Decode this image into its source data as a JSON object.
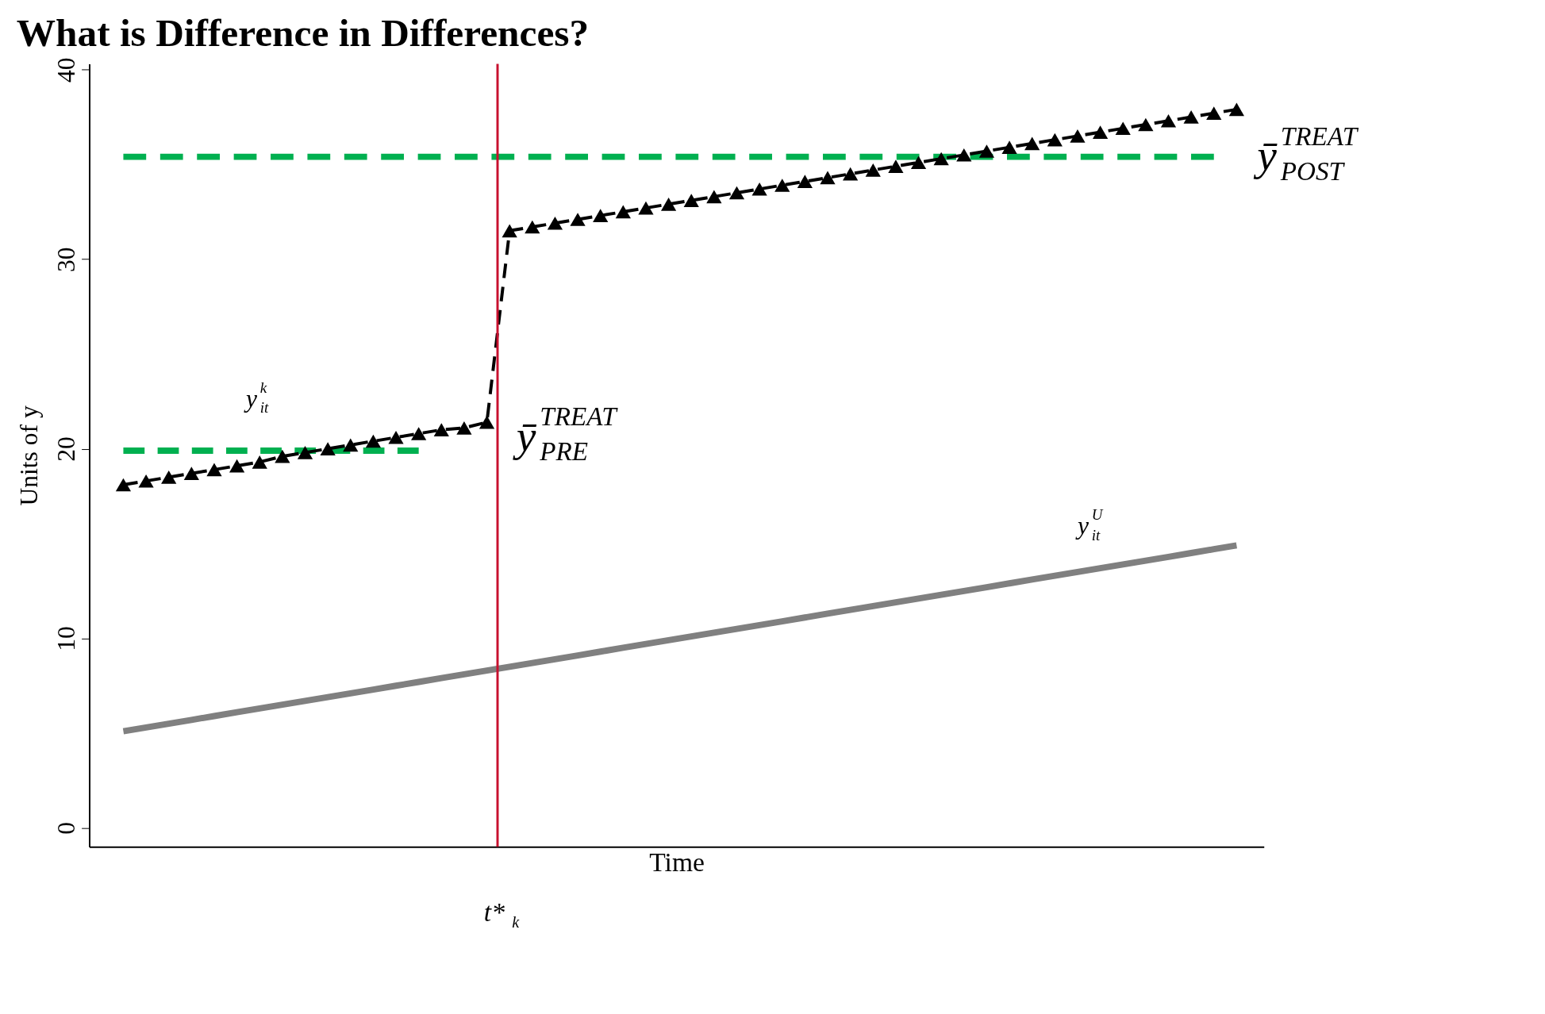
{
  "chart_data": {
    "type": "line",
    "title": "What is Difference in Differences?",
    "xlabel": "Time",
    "ylabel": "Units of y",
    "categories": [
      null,
      null,
      null,
      null,
      null,
      null,
      null,
      null,
      null,
      null,
      null,
      null,
      null,
      null,
      null,
      null,
      null,
      null,
      null,
      null,
      null,
      null,
      null,
      null,
      null,
      null,
      null,
      null,
      null,
      null,
      null,
      null,
      null,
      null,
      null,
      null,
      null,
      null,
      null,
      null,
      null,
      null,
      null,
      null,
      null,
      null,
      null,
      null,
      null,
      null
    ],
    "ylim": [
      -1,
      40.3
    ],
    "yticks": [
      0,
      10,
      20,
      30,
      40
    ],
    "tick_labels": "y",
    "grid": false,
    "series": [
      {
        "color": "#808080",
        "values": [
          5.1,
          5.3,
          5.5,
          5.7,
          5.9,
          6.1,
          6.3,
          6.5,
          6.7,
          6.9,
          7.1,
          7.3,
          7.5,
          7.7,
          7.9,
          8.1,
          8.3,
          8.5,
          8.7,
          8.9,
          9.1,
          9.3,
          9.5,
          9.7,
          9.9,
          10.1,
          10.3,
          10.5,
          10.7,
          10.9,
          11.1,
          11.3,
          11.5,
          11.7,
          11.9,
          12.1,
          12.3,
          12.5,
          12.7,
          12.9,
          13.1,
          13.3,
          13.5,
          13.7,
          13.9,
          14.1,
          14.3,
          14.5,
          14.7,
          14.9
        ],
        "marker": "none",
        "line_style": "solid"
      },
      {
        "color": "#00b050",
        "values": [
          19.9,
          19.9,
          19.9,
          19.9,
          19.9,
          19.9,
          19.9,
          19.9,
          19.9,
          19.9,
          19.9,
          19.9,
          19.9,
          19.9,
          null,
          null,
          null,
          null,
          null,
          null,
          null,
          null,
          null,
          null,
          null,
          null,
          null,
          null,
          null,
          null,
          null,
          null,
          null,
          null,
          null,
          null,
          null,
          null,
          null,
          null,
          null,
          null,
          null,
          null,
          null,
          null,
          null,
          null,
          null,
          null
        ],
        "marker": "none",
        "line_style": "dashed"
      },
      {
        "color": "#00b050",
        "values": [
          35.4,
          35.4,
          35.4,
          35.4,
          35.4,
          35.4,
          35.4,
          35.4,
          35.4,
          35.4,
          35.4,
          35.4,
          35.4,
          35.4,
          35.4,
          35.4,
          35.4,
          35.4,
          35.4,
          35.4,
          35.4,
          35.4,
          35.4,
          35.4,
          35.4,
          35.4,
          35.4,
          35.4,
          35.4,
          35.4,
          35.4,
          35.4,
          35.4,
          35.4,
          35.4,
          35.4,
          35.4,
          35.4,
          35.4,
          35.4,
          35.4,
          35.4,
          35.4,
          35.4,
          35.4,
          35.4,
          35.4,
          35.4,
          35.4,
          null
        ],
        "marker": "none",
        "line_style": "dashed"
      },
      {
        "color": "#000000",
        "values": [
          18.1,
          18.3,
          18.5,
          18.7,
          18.9,
          19.1,
          19.3,
          19.6,
          19.8,
          20.0,
          20.2,
          20.4,
          20.6,
          20.8,
          21.0,
          21.1,
          21.4,
          31.5,
          31.7,
          31.9,
          32.1,
          32.3,
          32.5,
          32.7,
          32.9,
          33.1,
          33.3,
          33.5,
          33.7,
          33.9,
          34.1,
          34.3,
          34.5,
          34.7,
          34.9,
          35.1,
          35.3,
          35.5,
          35.7,
          35.9,
          36.1,
          36.3,
          36.5,
          36.7,
          36.9,
          37.1,
          37.3,
          37.5,
          37.7,
          37.9
        ],
        "marker": "triangle",
        "line_style": "dashed"
      }
    ],
    "annotations": [
      "y$^{k}$$_{it}$",
      "y$^{U}$$_{it}$",
      "ȳ$^{TREAT}$$_{PRE}$",
      "ȳ$^{TREAT}$$_{POST}$",
      "t*$_{k}$"
    ]
  }
}
